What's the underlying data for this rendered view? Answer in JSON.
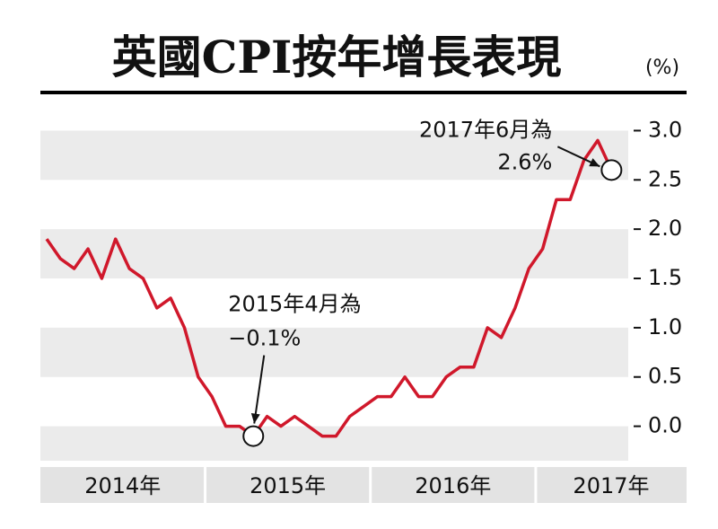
{
  "chart_data": {
    "type": "line",
    "title": "英國CPI按年增長表現",
    "unit": "(%)",
    "x_labels": [
      "2014年",
      "2015年",
      "2016年",
      "2017年"
    ],
    "series": [
      {
        "color": "#d0182b",
        "values": [
          1.9,
          1.7,
          1.6,
          1.8,
          1.5,
          1.9,
          1.6,
          1.5,
          1.2,
          1.3,
          1.0,
          0.5,
          0.3,
          0.0,
          0.0,
          -0.1,
          0.1,
          0.0,
          0.1,
          0.0,
          -0.1,
          -0.1,
          0.1,
          0.2,
          0.3,
          0.3,
          0.5,
          0.3,
          0.3,
          0.5,
          0.6,
          0.6,
          1.0,
          0.9,
          1.2,
          1.6,
          1.8,
          2.3,
          2.3,
          2.7,
          2.9,
          2.6
        ]
      }
    ],
    "ylim": [
      -0.35,
      3.25
    ],
    "yticks": [
      {
        "value": 0,
        "label": "0.0"
      },
      0.5,
      {
        "value": 1,
        "label": "1.0"
      },
      1.5,
      {
        "value": 2,
        "label": "2.0"
      },
      2.5,
      {
        "value": 3,
        "label": "3.0"
      }
    ],
    "annotations": [
      {
        "lines": [
          "2015年4月為",
          "−0.1%"
        ]
      },
      {
        "lines": [
          "2017年6月為",
          "2.6%"
        ]
      }
    ]
  }
}
